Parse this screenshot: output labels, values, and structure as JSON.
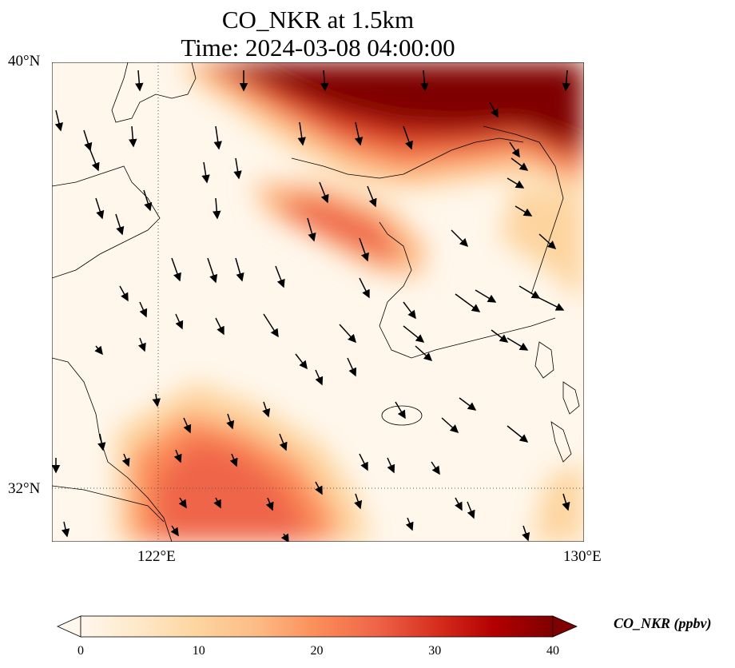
{
  "title": {
    "line1": "CO_NKR at 1.5km",
    "line2": "Time: 2024-03-08 04:00:00"
  },
  "map": {
    "lon_range": [
      120,
      130
    ],
    "lat_range": [
      31,
      40
    ],
    "lon_ticks": [
      {
        "value": 122,
        "label": "122°E"
      },
      {
        "value": 130,
        "label": "130°E"
      }
    ],
    "lat_ticks": [
      {
        "value": 40,
        "label": "40°N"
      },
      {
        "value": 32,
        "label": "32°N"
      }
    ],
    "gridlines": "dotted",
    "field_units": "ppbv"
  },
  "colorbar": {
    "label": "CO_NKR (ppbv)",
    "ticks": [
      0,
      10,
      20,
      30,
      40
    ],
    "range": [
      0,
      40
    ],
    "extend": "both",
    "colormap": "OrRd",
    "colors": [
      "#fff7ec",
      "#fee8c8",
      "#fdd49e",
      "#fdbb84",
      "#fc8d59",
      "#ef6548",
      "#d7301f",
      "#b30000",
      "#7f0000"
    ]
  }
}
